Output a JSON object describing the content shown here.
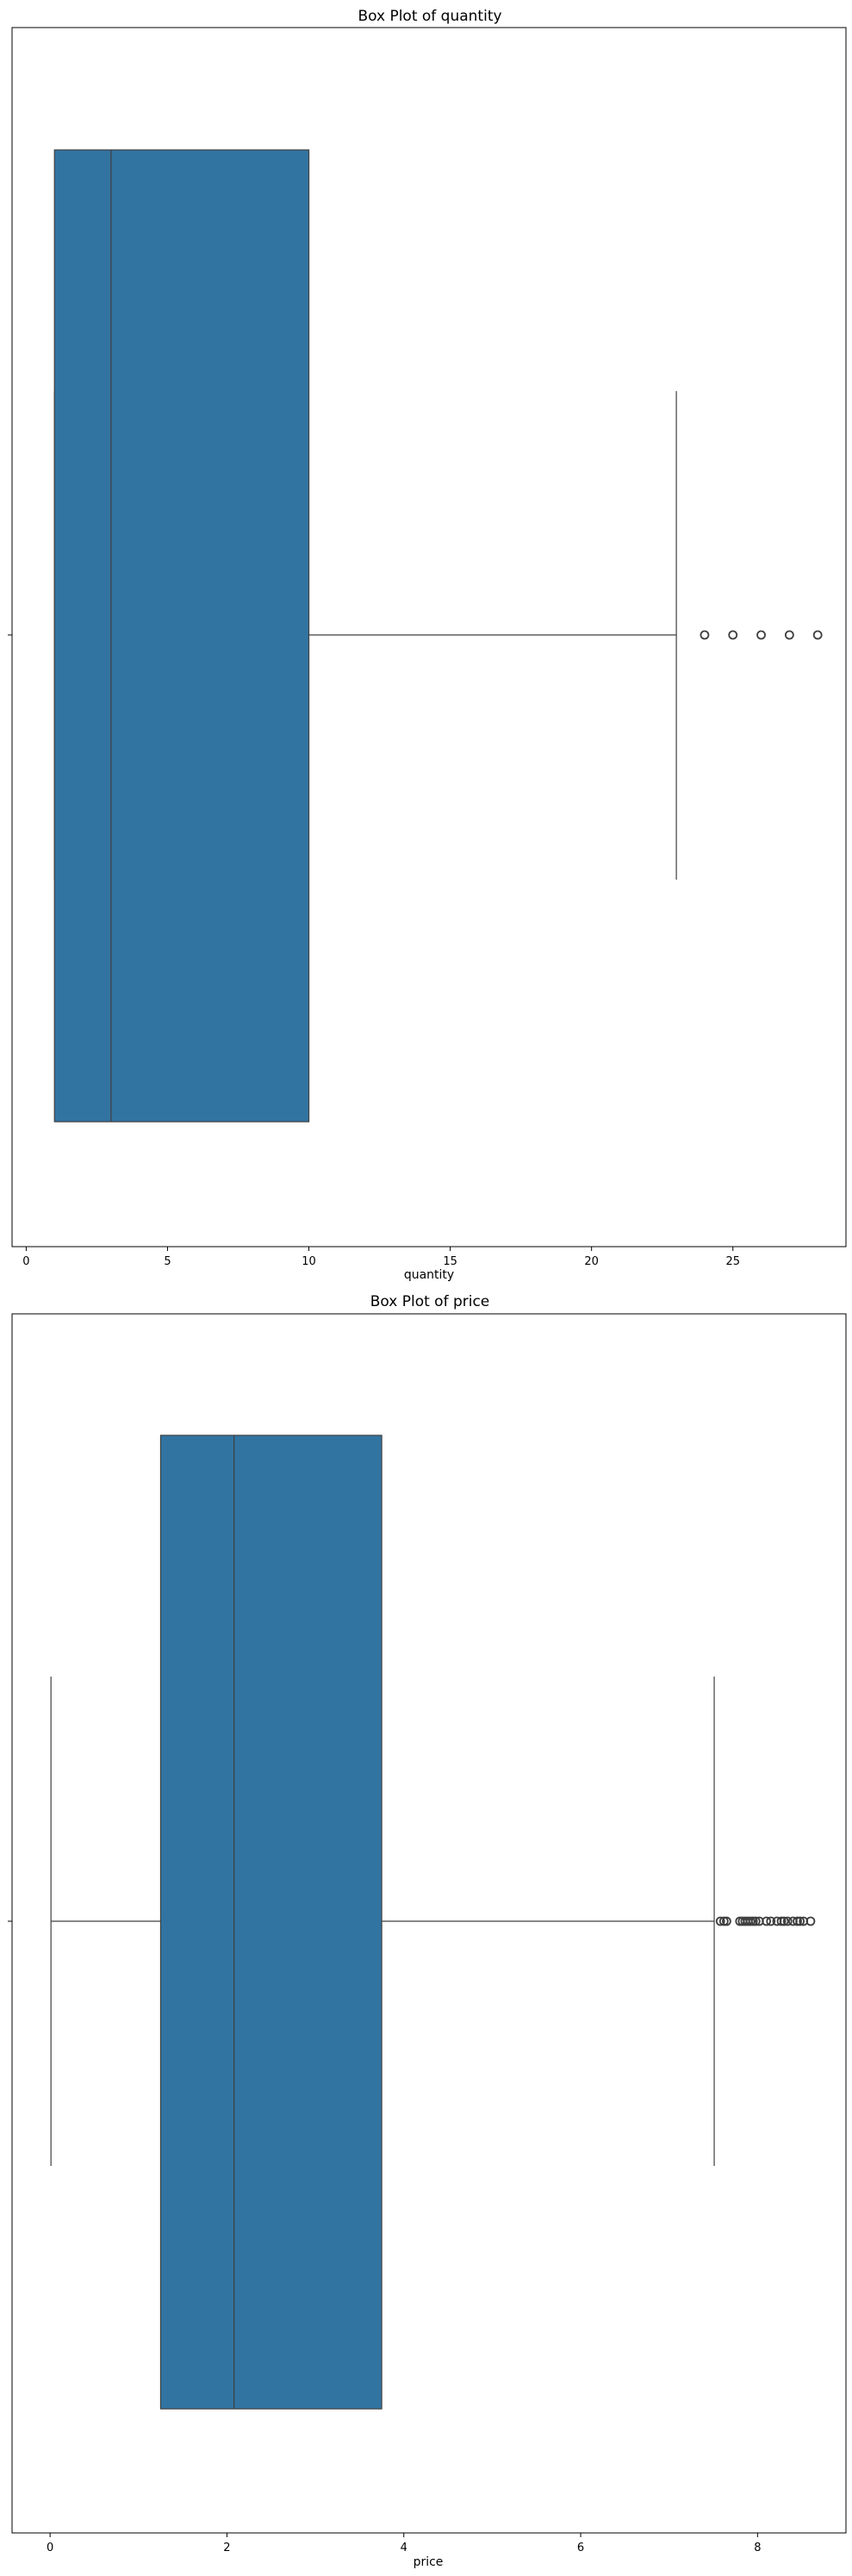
{
  "chart_data": [
    {
      "type": "box",
      "title": "Box Plot of quantity",
      "xlabel": "quantity",
      "ylabel": "",
      "xlim": [
        -0.5,
        29.0
      ],
      "xticks": [
        0,
        5,
        10,
        15,
        20,
        25
      ],
      "box_color": "#3274a1",
      "stats": {
        "whisker_low": 1,
        "q1": 1,
        "median": 3,
        "q3": 10,
        "whisker_high": 23
      },
      "outliers": [
        24,
        25,
        26,
        27,
        28
      ],
      "grid": false
    },
    {
      "type": "box",
      "title": "Box Plot of price",
      "xlabel": "price",
      "ylabel": "",
      "xlim": [
        -0.43,
        9.0
      ],
      "xticks": [
        0,
        2,
        4,
        6,
        8
      ],
      "box_color": "#3274a1",
      "stats": {
        "whisker_low": 0.01,
        "q1": 1.25,
        "median": 2.08,
        "q3": 3.75,
        "whisker_high": 7.51
      },
      "outliers": [
        7.58,
        7.62,
        7.65,
        7.8,
        7.83,
        7.86,
        7.89,
        7.92,
        7.95,
        7.98,
        8.02,
        8.1,
        8.15,
        8.22,
        8.27,
        8.3,
        8.34,
        8.4,
        8.45,
        8.48,
        8.52,
        8.6
      ],
      "grid": false
    }
  ]
}
